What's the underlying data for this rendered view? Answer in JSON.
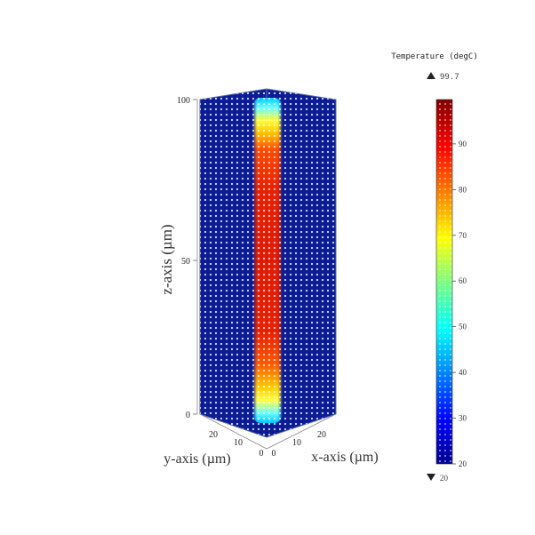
{
  "chart_data": {
    "type": "heatmap",
    "title": "",
    "colorbar": {
      "label": "Temperature (degC)",
      "max_marker": "99.7",
      "min_marker": "20",
      "max": 99.7,
      "min": 20,
      "ticks": [
        20,
        30,
        40,
        50,
        60,
        70,
        80,
        90
      ]
    },
    "axes": {
      "z": {
        "label": "z-axis (µm)",
        "range": [
          0,
          100
        ],
        "ticks": [
          "0",
          "50",
          "100"
        ]
      },
      "y": {
        "label": "y-axis (µm)",
        "range": [
          0,
          20
        ],
        "ticks": [
          "20",
          "10",
          "0"
        ]
      },
      "x": {
        "label": "x-axis (µm)",
        "range": [
          0,
          20
        ],
        "ticks": [
          "0",
          "10",
          "20"
        ]
      }
    },
    "profile": {
      "description_z": [
        0,
        3,
        6,
        10,
        14,
        20,
        30,
        45,
        55,
        70,
        85,
        90,
        94,
        97,
        100
      ],
      "core_temperature": [
        40,
        48,
        62,
        74,
        86,
        92,
        95,
        96,
        96,
        94,
        86,
        72,
        62,
        50,
        42
      ],
      "background_temperature": 20
    },
    "colors": {
      "background": "#0b1c96",
      "dot": "#ffffff"
    }
  }
}
